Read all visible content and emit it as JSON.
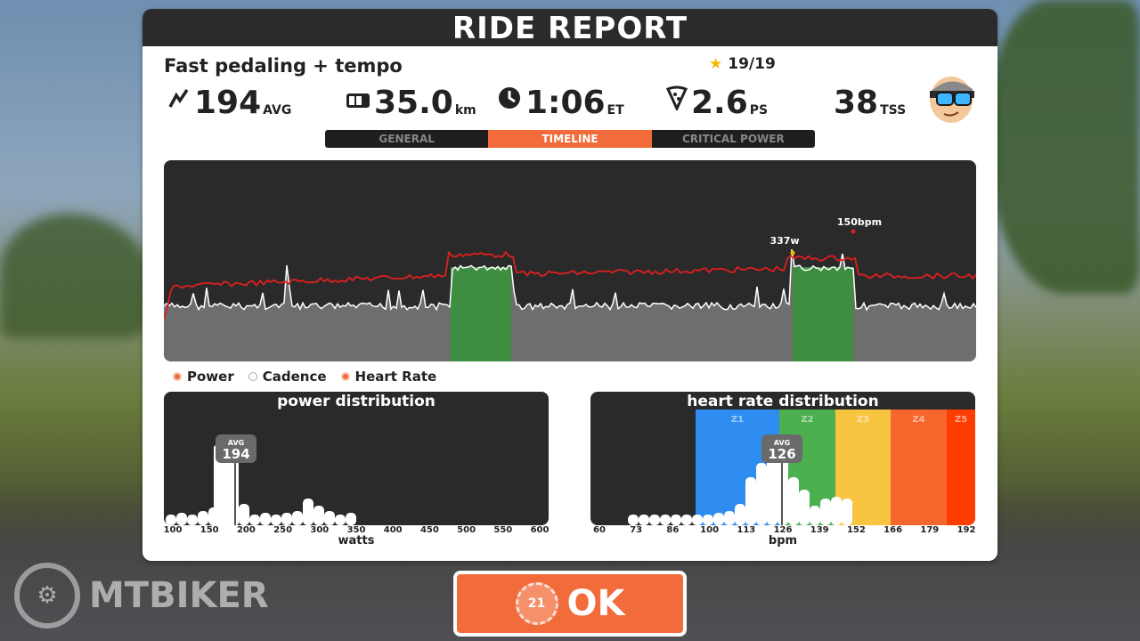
{
  "header": {
    "title": "RIDE REPORT"
  },
  "workout": {
    "name": "Fast pedaling + tempo",
    "stars": "19/19"
  },
  "stats": [
    {
      "icon": "power-icon",
      "value": "194",
      "unit": "AVG"
    },
    {
      "icon": "odometer-icon",
      "value": "35.0",
      "unit": "km"
    },
    {
      "icon": "clock-icon",
      "value": "1:06",
      "unit": "ET"
    },
    {
      "icon": "pizza-icon",
      "value": "2.6",
      "unit": "PS"
    },
    {
      "icon": "",
      "value": "38",
      "unit": "TSS"
    }
  ],
  "tabs": [
    {
      "label": "GENERAL",
      "active": false
    },
    {
      "label": "TIMELINE",
      "active": true
    },
    {
      "label": "CRITICAL POWER",
      "active": false
    }
  ],
  "timeline": {
    "peak_power_label": "337w",
    "peak_hr_label": "150bpm",
    "colors": {
      "power_fill": "#6e6e6e",
      "power_line": "#ffffff",
      "hr_line": "#e01f1f",
      "interval": "#3e8e41"
    }
  },
  "legend": [
    {
      "label": "Power",
      "on": true
    },
    {
      "label": "Cadence",
      "on": false
    },
    {
      "label": "Heart Rate",
      "on": true
    }
  ],
  "power_distribution": {
    "title": "power distribution",
    "avg_label": "AVG",
    "avg_value": "194",
    "x_ticks": [
      "100",
      "150",
      "200",
      "250",
      "300",
      "350",
      "400",
      "450",
      "500",
      "550",
      "600"
    ],
    "x_label": "watts"
  },
  "hr_distribution": {
    "title": "heart rate distribution",
    "avg_label": "AVG",
    "avg_value": "126",
    "zones": [
      {
        "name": "Z1",
        "color": "#2f8cf0"
      },
      {
        "name": "Z2",
        "color": "#4caf50"
      },
      {
        "name": "Z3",
        "color": "#f9c440"
      },
      {
        "name": "Z4",
        "color": "#f7662d"
      },
      {
        "name": "Z5",
        "color": "#ff3d00"
      }
    ],
    "x_ticks": [
      "60",
      "73",
      "86",
      "100",
      "113",
      "126",
      "139",
      "152",
      "166",
      "179",
      "192"
    ],
    "x_label": "bpm"
  },
  "ok_button": {
    "label": "OK",
    "badge": "21"
  },
  "watermark": {
    "text": "MTBIKER"
  }
}
